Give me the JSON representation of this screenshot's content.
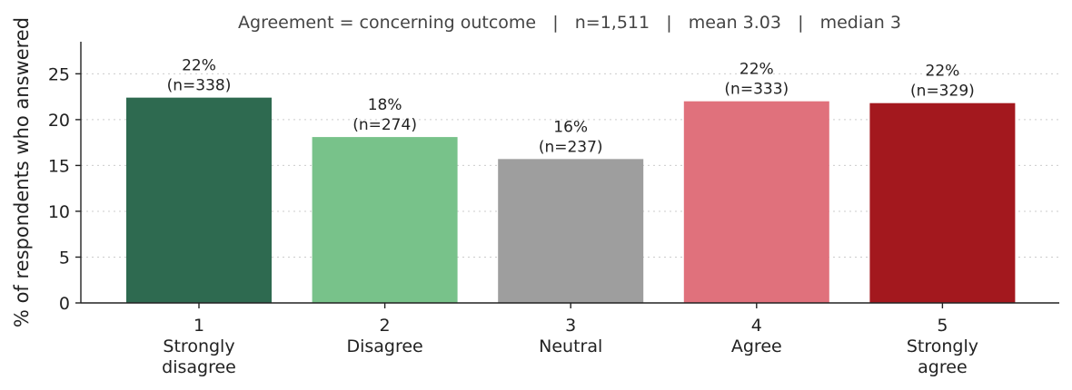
{
  "chart_data": {
    "type": "bar",
    "title": "Agreement = concerning outcome   |   n=1,511   |   mean 3.03   |   median 3",
    "xlabel": "",
    "ylabel": "% of respondents who answered",
    "ylim": [
      0,
      28.5
    ],
    "yticks": [
      0,
      5,
      10,
      15,
      20,
      25
    ],
    "grid": true,
    "categories": [
      {
        "code": "1",
        "label": [
          "Strongly",
          "disagree"
        ]
      },
      {
        "code": "2",
        "label": [
          "Disagree"
        ]
      },
      {
        "code": "3",
        "label": [
          "Neutral"
        ]
      },
      {
        "code": "4",
        "label": [
          "Agree"
        ]
      },
      {
        "code": "5",
        "label": [
          "Strongly",
          "agree"
        ]
      }
    ],
    "values": [
      22.4,
      18.1,
      15.7,
      22.0,
      21.8
    ],
    "percent_labels": [
      "22%",
      "18%",
      "16%",
      "22%",
      "22%"
    ],
    "count_labels": [
      "(n=338)",
      "(n=274)",
      "(n=237)",
      "(n=333)",
      "(n=329)"
    ],
    "colors": [
      "#2e6a50",
      "#78c28a",
      "#9e9e9e",
      "#e0717c",
      "#a3181e"
    ]
  }
}
